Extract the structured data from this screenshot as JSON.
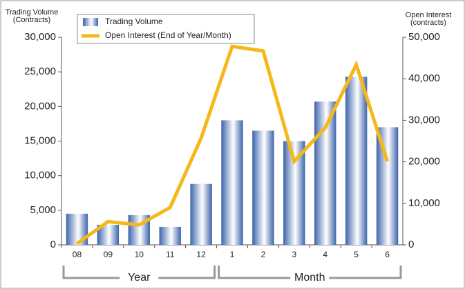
{
  "chart_data": {
    "type": "bar",
    "y_label": [
      "Trading Volume",
      "(Contracts)"
    ],
    "y2_label": [
      "Open Interest",
      "(contracts)"
    ],
    "categories": [
      "08",
      "09",
      "10",
      "11",
      "12",
      "1",
      "2",
      "3",
      "4",
      "5",
      "6"
    ],
    "category_groups": [
      {
        "label": "Year",
        "count": 5
      },
      {
        "label": "Month",
        "count": 6
      }
    ],
    "series": [
      {
        "name": "Trading Volume",
        "type": "bar",
        "color": "#3d64ab",
        "values": [
          4500,
          2900,
          4300,
          2600,
          8800,
          18000,
          16500,
          15000,
          20700,
          24300,
          17000
        ]
      },
      {
        "name": "Open Interest (End of Year/Month)",
        "type": "line",
        "axis": "y2",
        "color": "#f5b819",
        "values": [
          300,
          5600,
          4800,
          9000,
          25700,
          47800,
          46700,
          20100,
          28200,
          43400,
          20100
        ]
      }
    ],
    "ylim": [
      0,
      30000
    ],
    "yticks": [
      0,
      {
        "value": 5000,
        "label": "5,000"
      },
      {
        "value": 10000,
        "label": "10,000"
      },
      {
        "value": 15000,
        "label": "15,000"
      },
      {
        "value": 20000,
        "label": "20,000"
      },
      {
        "value": 25000,
        "label": "25,000"
      },
      {
        "value": 30000,
        "label": "30,000"
      }
    ],
    "y2lim": [
      0,
      50000
    ],
    "y2ticks": [
      0,
      {
        "value": 10000,
        "label": "10,000"
      },
      {
        "value": 20000,
        "label": "20,000"
      },
      {
        "value": 30000,
        "label": "30,000"
      },
      {
        "value": 40000,
        "label": "40,000"
      },
      {
        "value": 50000,
        "label": "50,000"
      }
    ],
    "legend": "top-left"
  }
}
